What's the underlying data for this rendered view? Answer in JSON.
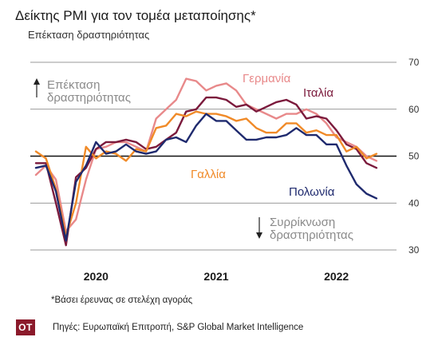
{
  "header": {
    "title": "Δείκτης PMI για τον τομέα μεταποίησης*",
    "subtitle": "Επέκταση δραστηριότητας"
  },
  "footer": {
    "footnote": "*Βάσει έρευνας σε στελέχη αγοράς",
    "logo_text": "ΟΤ",
    "source": "Πηγές: Ευρωπαϊκή Επιτροπή, S&P Global Market Intelligence"
  },
  "chart_data": {
    "type": "line",
    "ylim": [
      30,
      70
    ],
    "yticks": [
      30,
      40,
      50,
      60,
      70
    ],
    "xlim": [
      0,
      36
    ],
    "year_labels": [
      {
        "label": "2020",
        "x": 6
      },
      {
        "label": "2021",
        "x": 18
      },
      {
        "label": "2022",
        "x": 30
      }
    ],
    "reference_line": 50,
    "annotations": {
      "expansion": [
        "Επέκταση",
        "δραστηριότητας"
      ],
      "contraction": [
        "Συρρίκνωση",
        "δραστηριότητας"
      ]
    },
    "series": [
      {
        "name": "Γερμανία",
        "color": "#e8898a",
        "x": [
          0,
          1,
          2,
          3,
          4,
          5,
          6,
          7,
          8,
          9,
          10,
          11,
          12,
          13,
          14,
          15,
          16,
          17,
          18,
          19,
          20,
          21,
          22,
          23,
          24,
          25,
          26,
          27,
          28,
          29,
          30,
          31,
          32,
          33,
          34
        ],
        "values": [
          46,
          48,
          45,
          34,
          36.5,
          45,
          51.5,
          52,
          53,
          53,
          52,
          51,
          58,
          60,
          62,
          66.5,
          66,
          64,
          65,
          65.5,
          64,
          61,
          60,
          59,
          58,
          59,
          59,
          60,
          59,
          57,
          54,
          53,
          52,
          50,
          49
        ]
      },
      {
        "name": "Ιταλία",
        "color": "#7b1a3c",
        "x": [
          0,
          1,
          2,
          3,
          4,
          5,
          6,
          7,
          8,
          9,
          10,
          11,
          12,
          13,
          14,
          15,
          16,
          17,
          18,
          19,
          20,
          21,
          22,
          23,
          24,
          25,
          26,
          27,
          28,
          29,
          30,
          31,
          32,
          33,
          34
        ],
        "values": [
          48.5,
          48.5,
          40,
          31,
          45.5,
          47.5,
          51.5,
          53,
          53,
          53.5,
          53,
          51.5,
          52,
          53.5,
          55,
          59.5,
          60,
          62.5,
          62.5,
          62,
          60.5,
          61,
          59.5,
          60.5,
          61.5,
          62,
          61,
          58,
          58.5,
          58,
          55.5,
          52.5,
          51.5,
          48.5,
          47.5
        ]
      },
      {
        "name": "Γαλλία",
        "color": "#f08a28",
        "x": [
          0,
          1,
          2,
          3,
          4,
          5,
          6,
          7,
          8,
          9,
          10,
          11,
          12,
          13,
          14,
          15,
          16,
          17,
          18,
          19,
          20,
          21,
          22,
          23,
          24,
          25,
          26,
          27,
          28,
          29,
          30,
          31,
          32,
          33,
          34
        ],
        "values": [
          51,
          49.5,
          43,
          33,
          40,
          52,
          49.5,
          51,
          50.5,
          49,
          51.5,
          51,
          56,
          56.5,
          59,
          58.5,
          59.5,
          59,
          59,
          58.5,
          57.5,
          58,
          56,
          55,
          55,
          57,
          57,
          55,
          55.5,
          54.5,
          54.5,
          51,
          52,
          49.5,
          50.5
        ]
      },
      {
        "name": "Πολωνία",
        "color": "#1f2a6e",
        "x": [
          0,
          1,
          2,
          3,
          4,
          5,
          6,
          7,
          8,
          9,
          10,
          11,
          12,
          13,
          14,
          15,
          16,
          17,
          18,
          19,
          20,
          21,
          22,
          23,
          24,
          25,
          26,
          27,
          28,
          29,
          30,
          31,
          32,
          33,
          34
        ],
        "values": [
          47.5,
          48,
          42.5,
          32,
          44.5,
          48,
          53,
          50.5,
          51,
          52.5,
          51,
          50.5,
          51,
          53.5,
          54,
          53,
          56.5,
          59,
          57.5,
          57.5,
          55.5,
          53.5,
          53.5,
          54,
          54,
          54.5,
          56,
          54.5,
          54.5,
          52.5,
          52.5,
          48,
          44,
          42,
          41
        ]
      }
    ]
  }
}
